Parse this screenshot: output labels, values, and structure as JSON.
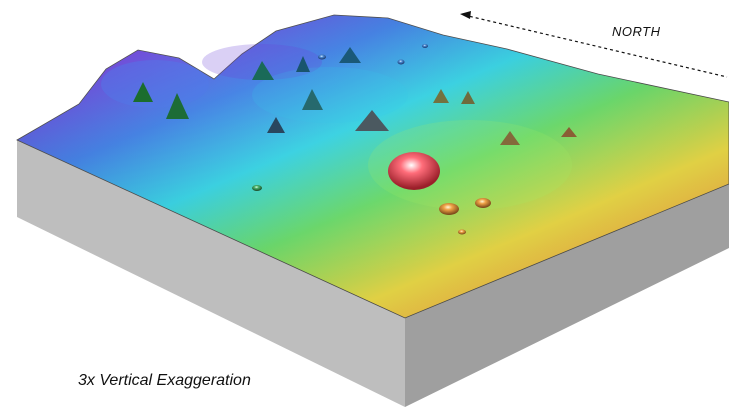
{
  "map": {
    "direction_label": "NORTH",
    "caption": "3x Vertical Exaggeration",
    "colors": {
      "block_top": "#a9a9a9",
      "block_side": "#bebebe",
      "block_front": "#9f9f9f",
      "magenta": "#c23ec8",
      "violet": "#6b43d8",
      "blue": "#3f7fe6",
      "cyan": "#37d7e8",
      "green": "#6fe36f",
      "yellow": "#f4e24a",
      "orange": "#f0a347",
      "red": "#e45a4d"
    }
  }
}
